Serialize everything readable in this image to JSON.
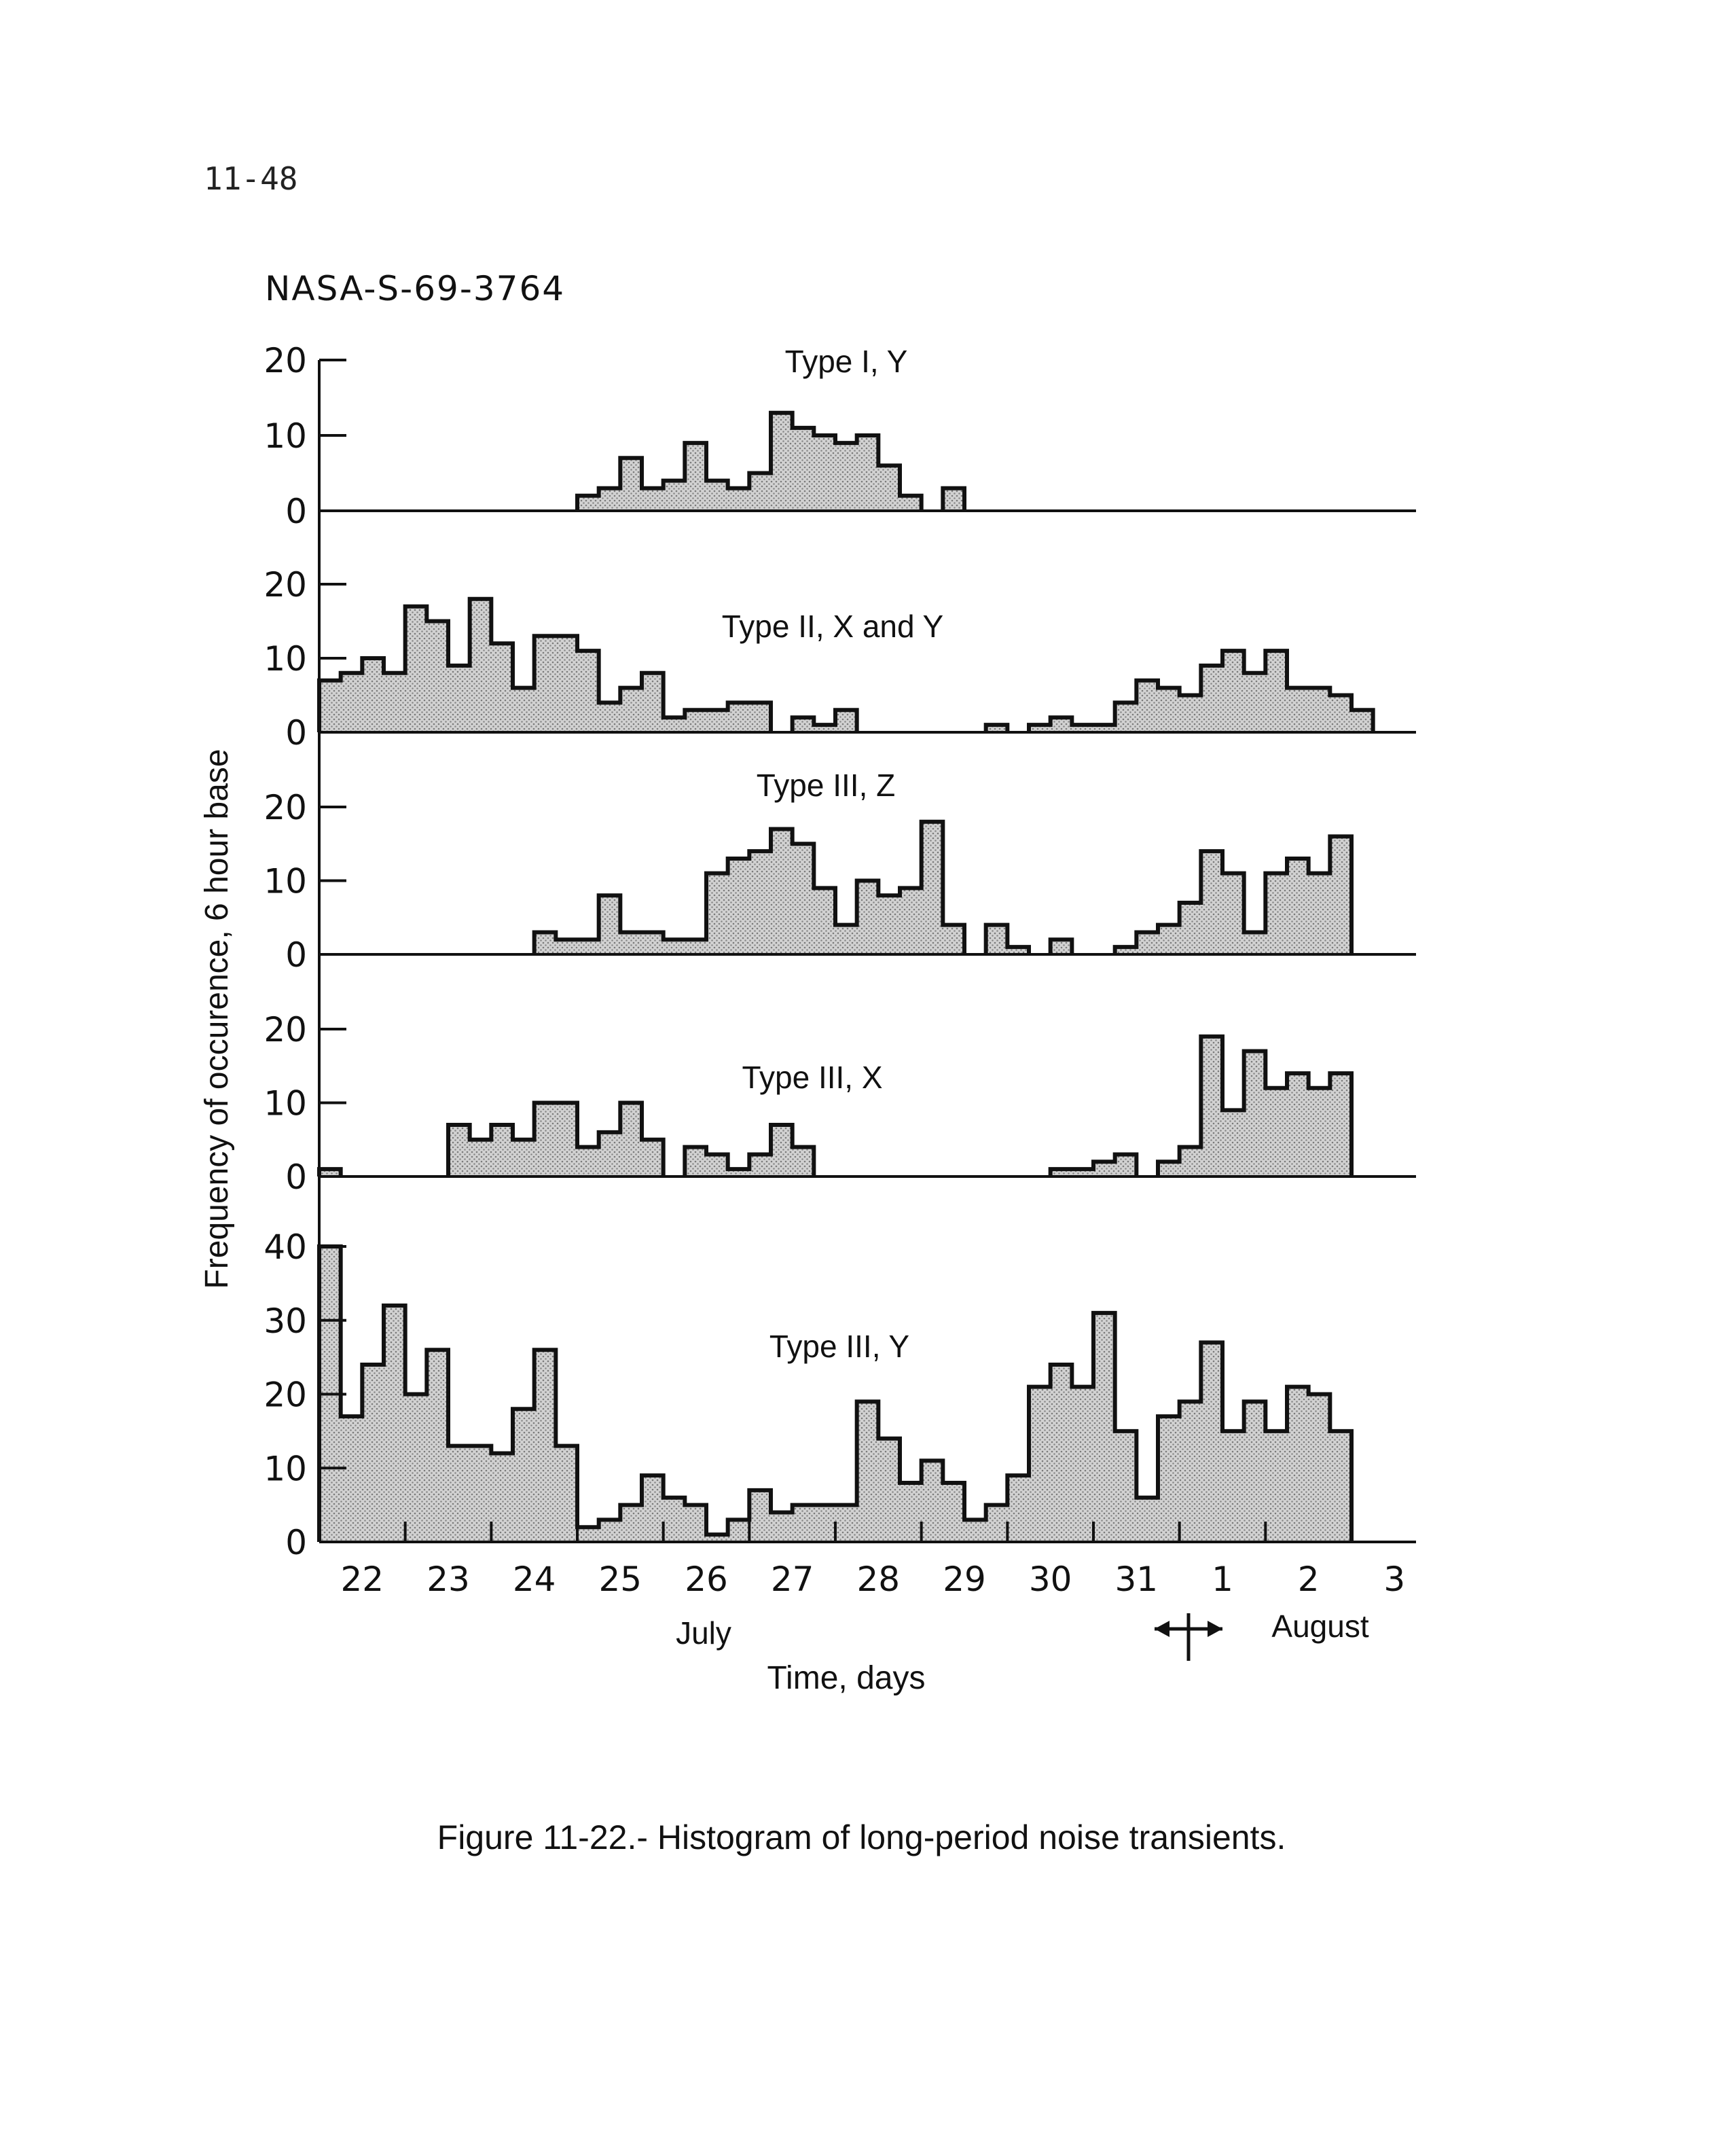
{
  "page": {
    "page_number": "11-48",
    "document_id": "NASA-S-69-3764",
    "caption": "Figure 11-22.- Histogram of long-period noise transients."
  },
  "colors": {
    "ink": "#111111",
    "fill": "#cfcfcf",
    "fill_dots": "#7a7a7a"
  },
  "chart_data": {
    "type": "bar",
    "histogram": true,
    "bin": "6 hour",
    "ylabel": "Frequency of occurence, 6 hour base",
    "xlabel": "Time, days",
    "x_tick_labels": [
      "22",
      "23",
      "24",
      "25",
      "26",
      "27",
      "28",
      "29",
      "30",
      "31",
      "1",
      "2",
      "3"
    ],
    "month_labels": [
      "July",
      "August"
    ],
    "panels": [
      {
        "name": "Type I, Y",
        "ylim": [
          0,
          20
        ],
        "yticks": [
          0,
          10,
          20
        ],
        "values": [
          0,
          0,
          0,
          0,
          0,
          0,
          0,
          0,
          0,
          0,
          0,
          0,
          2,
          3,
          7,
          3,
          4,
          9,
          4,
          3,
          5,
          13,
          11,
          10,
          9,
          10,
          6,
          2,
          0,
          3,
          0,
          0,
          0,
          0,
          0,
          0,
          0,
          0,
          0,
          0,
          0,
          0,
          0,
          0,
          0,
          0,
          0,
          0,
          0,
          0,
          0
        ]
      },
      {
        "name": "Type II, X and Y",
        "ylim": [
          0,
          20
        ],
        "yticks": [
          0,
          10,
          20
        ],
        "values": [
          7,
          8,
          10,
          8,
          17,
          15,
          9,
          18,
          12,
          6,
          13,
          13,
          11,
          4,
          6,
          8,
          2,
          3,
          3,
          4,
          4,
          0,
          2,
          1,
          3,
          0,
          0,
          0,
          0,
          0,
          0,
          1,
          0,
          1,
          2,
          1,
          1,
          4,
          7,
          6,
          5,
          9,
          11,
          8,
          11,
          6,
          6,
          5,
          3,
          0,
          0
        ]
      },
      {
        "name": "Type III, Z",
        "ylim": [
          0,
          20
        ],
        "yticks": [
          0,
          10,
          20
        ],
        "values": [
          0,
          0,
          0,
          0,
          0,
          0,
          0,
          0,
          0,
          0,
          3,
          2,
          2,
          8,
          3,
          3,
          2,
          2,
          11,
          13,
          14,
          17,
          15,
          9,
          4,
          10,
          8,
          9,
          18,
          4,
          0,
          4,
          1,
          0,
          2,
          0,
          0,
          1,
          3,
          4,
          7,
          14,
          11,
          3,
          11,
          13,
          11,
          16,
          0,
          0,
          0
        ]
      },
      {
        "name": "Type III, X",
        "ylim": [
          0,
          20
        ],
        "yticks": [
          0,
          10,
          20
        ],
        "values": [
          1,
          0,
          0,
          0,
          0,
          0,
          7,
          5,
          7,
          5,
          10,
          10,
          4,
          6,
          10,
          5,
          0,
          4,
          3,
          1,
          3,
          7,
          4,
          0,
          0,
          0,
          0,
          0,
          0,
          0,
          0,
          0,
          0,
          0,
          1,
          1,
          2,
          3,
          0,
          2,
          4,
          19,
          9,
          17,
          12,
          14,
          12,
          14,
          0,
          0,
          0
        ]
      },
      {
        "name": "Type III, Y",
        "ylim": [
          0,
          40
        ],
        "yticks": [
          0,
          10,
          20,
          30,
          40
        ],
        "values": [
          40,
          17,
          24,
          32,
          20,
          26,
          13,
          13,
          12,
          18,
          26,
          13,
          2,
          3,
          5,
          9,
          6,
          5,
          1,
          3,
          7,
          4,
          5,
          5,
          5,
          19,
          14,
          8,
          11,
          8,
          3,
          5,
          9,
          21,
          24,
          21,
          31,
          15,
          6,
          17,
          19,
          27,
          15,
          19,
          15,
          21,
          20,
          15,
          0,
          0,
          0
        ]
      }
    ]
  }
}
